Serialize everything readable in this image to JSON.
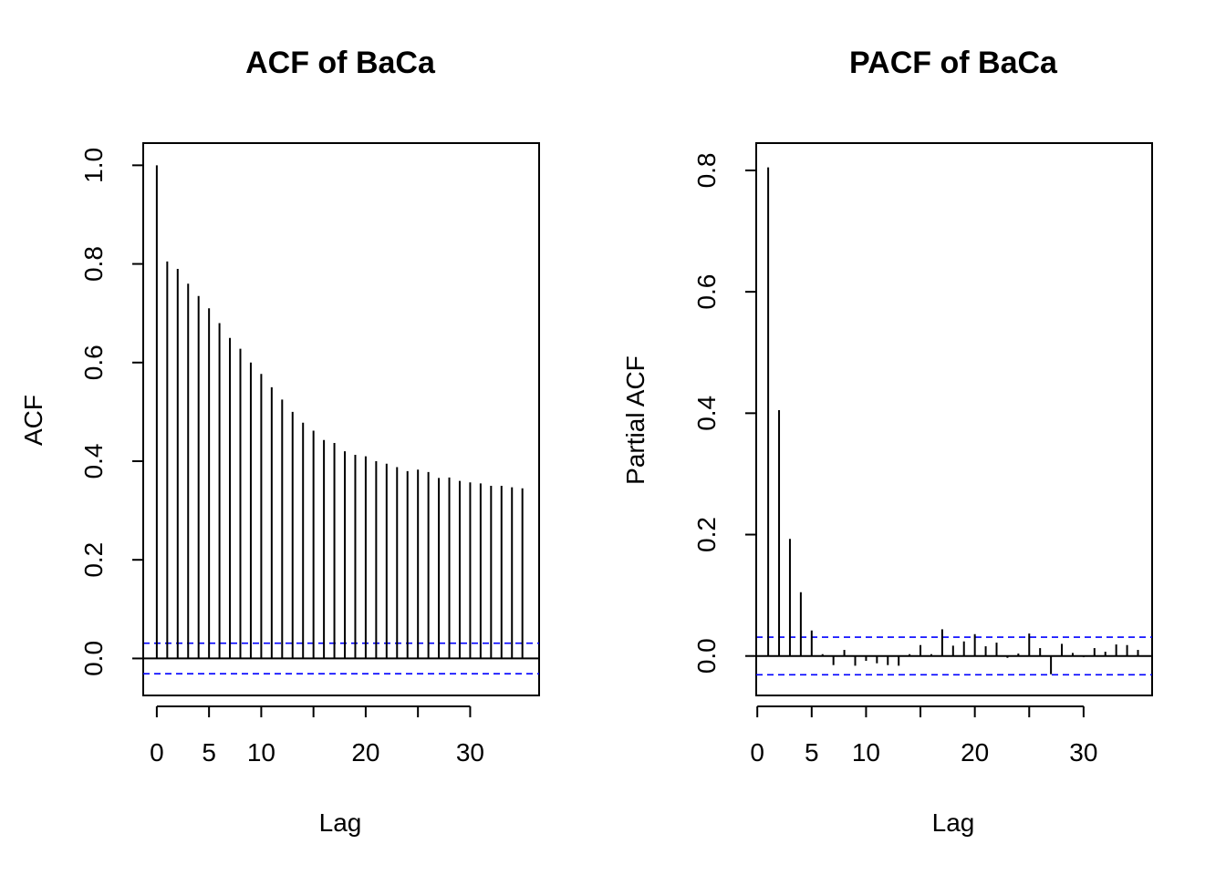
{
  "chart_data": [
    {
      "type": "bar",
      "title": "ACF of BaCa",
      "xlabel": "Lag",
      "ylabel": "ACF",
      "x": [
        0,
        1,
        2,
        3,
        4,
        5,
        6,
        7,
        8,
        9,
        10,
        11,
        12,
        13,
        14,
        15,
        16,
        17,
        18,
        19,
        20,
        21,
        22,
        23,
        24,
        25,
        26,
        27,
        28,
        29,
        30,
        31,
        32,
        33,
        34,
        35
      ],
      "values": [
        1.0,
        0.805,
        0.79,
        0.76,
        0.735,
        0.71,
        0.68,
        0.65,
        0.628,
        0.6,
        0.577,
        0.55,
        0.525,
        0.5,
        0.478,
        0.462,
        0.443,
        0.437,
        0.42,
        0.413,
        0.41,
        0.4,
        0.395,
        0.388,
        0.38,
        0.383,
        0.378,
        0.366,
        0.367,
        0.36,
        0.357,
        0.355,
        0.35,
        0.35,
        0.347,
        0.345
      ],
      "confidence_band": 0.031,
      "xlim": [
        -1.3,
        36.6
      ],
      "ylim": [
        -0.075,
        1.045
      ],
      "xticks": [
        0,
        5,
        10,
        20,
        30
      ],
      "yticks": [
        0.0,
        0.2,
        0.4,
        0.6,
        0.8,
        1.0
      ],
      "ytick_labels": [
        "0.0",
        "0.2",
        "0.4",
        "0.6",
        "0.8",
        "1.0"
      ],
      "colors": {
        "bars": "#000000",
        "band": "#0000ff",
        "zero_line": "#000000"
      }
    },
    {
      "type": "bar",
      "title": "PACF of BaCa",
      "xlabel": "Lag",
      "ylabel": "Partial ACF",
      "x": [
        1,
        2,
        3,
        4,
        5,
        6,
        7,
        8,
        9,
        10,
        11,
        12,
        13,
        14,
        15,
        16,
        17,
        18,
        19,
        20,
        21,
        22,
        23,
        24,
        25,
        26,
        27,
        28,
        29,
        30,
        31,
        32,
        33,
        34,
        35
      ],
      "values": [
        0.805,
        0.405,
        0.193,
        0.105,
        0.042,
        0.003,
        -0.015,
        0.01,
        -0.016,
        -0.008,
        -0.012,
        -0.015,
        -0.016,
        0.003,
        0.018,
        0.003,
        0.044,
        0.017,
        0.024,
        0.036,
        0.016,
        0.022,
        -0.003,
        0.004,
        0.037,
        0.013,
        -0.03,
        0.02,
        0.005,
        -0.002,
        0.013,
        0.007,
        0.019,
        0.018,
        0.01
      ],
      "confidence_band": 0.031,
      "xlim": [
        -0.1,
        36.3
      ],
      "ylim": [
        -0.065,
        0.845
      ],
      "xticks": [
        0,
        5,
        10,
        20,
        30
      ],
      "yticks": [
        0.0,
        0.2,
        0.4,
        0.6,
        0.8
      ],
      "ytick_labels": [
        "0.0",
        "0.2",
        "0.4",
        "0.6",
        "0.8"
      ],
      "colors": {
        "bars": "#000000",
        "band": "#0000ff",
        "zero_line": "#000000"
      }
    }
  ]
}
